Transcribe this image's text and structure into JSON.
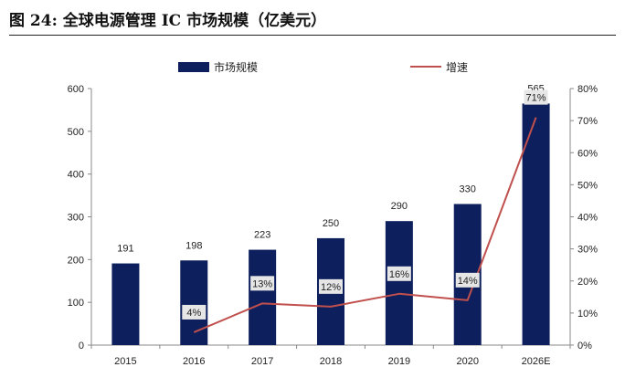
{
  "figure": {
    "title": "图 24: 全球电源管理 IC 市场规模（亿美元）"
  },
  "colors": {
    "bar": "#0d1f5c",
    "line": "#c0504d",
    "axis": "#888888",
    "label_box": "#e6e6e6"
  },
  "chart_data": {
    "type": "bar",
    "title": "",
    "categories": [
      "2015",
      "2016",
      "2017",
      "2018",
      "2019",
      "2020",
      "2026E"
    ],
    "series": [
      {
        "name": "市场规模",
        "type": "bar",
        "axis": "left",
        "values": [
          191,
          198,
          223,
          250,
          290,
          330,
          565
        ],
        "labels": [
          "191",
          "198",
          "223",
          "250",
          "290",
          "330",
          "565"
        ]
      },
      {
        "name": "增速",
        "type": "line",
        "axis": "right",
        "values": [
          null,
          4,
          13,
          12,
          16,
          14,
          71
        ],
        "labels": [
          "",
          "4%",
          "13%",
          "12%",
          "16%",
          "14%",
          "71%"
        ]
      }
    ],
    "y_left": {
      "min": 0,
      "max": 600,
      "step": 100,
      "ticks": [
        "0",
        "100",
        "200",
        "300",
        "400",
        "500",
        "600"
      ]
    },
    "y_right": {
      "min": 0,
      "max": 80,
      "step": 10,
      "ticks": [
        "0%",
        "10%",
        "20%",
        "30%",
        "40%",
        "50%",
        "60%",
        "70%",
        "80%"
      ]
    },
    "legend_position": "top",
    "grid": false
  }
}
